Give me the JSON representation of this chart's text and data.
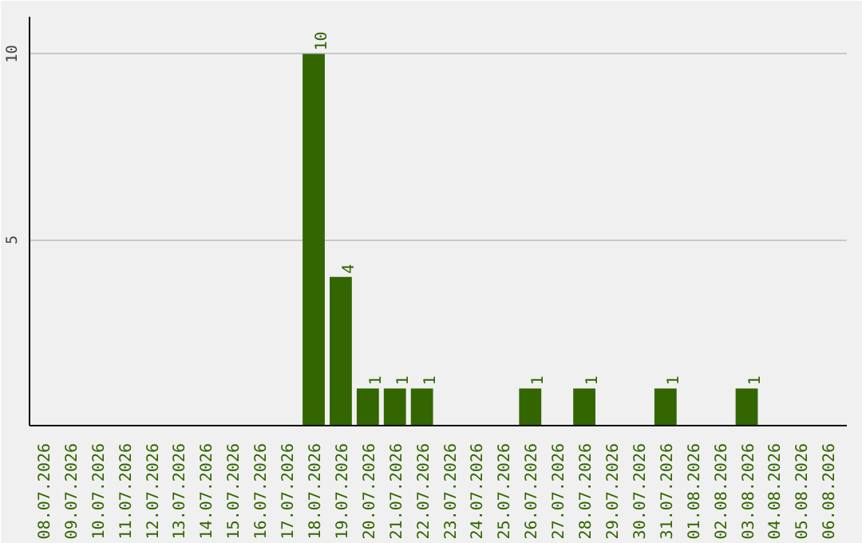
{
  "chart_data": {
    "type": "bar",
    "categories": [
      "08.07.2026",
      "09.07.2026",
      "10.07.2026",
      "11.07.2026",
      "12.07.2026",
      "13.07.2026",
      "14.07.2026",
      "15.07.2026",
      "16.07.2026",
      "17.07.2026",
      "18.07.2026",
      "19.07.2026",
      "20.07.2026",
      "21.07.2026",
      "22.07.2026",
      "23.07.2026",
      "24.07.2026",
      "25.07.2026",
      "26.07.2026",
      "27.07.2026",
      "28.07.2026",
      "29.07.2026",
      "30.07.2026",
      "31.07.2026",
      "01.08.2026",
      "02.08.2026",
      "03.08.2026",
      "04.08.2026",
      "05.08.2026",
      "06.08.2026"
    ],
    "values": [
      0,
      0,
      0,
      0,
      0,
      0,
      0,
      0,
      0,
      0,
      10,
      4,
      1,
      1,
      1,
      0,
      0,
      0,
      1,
      0,
      1,
      0,
      0,
      1,
      0,
      0,
      1,
      0,
      0,
      0
    ],
    "value_labels": [
      null,
      null,
      null,
      null,
      null,
      null,
      null,
      null,
      null,
      null,
      "10",
      "4",
      "1",
      "1",
      "1",
      null,
      null,
      null,
      "1",
      null,
      "1",
      null,
      null,
      "1",
      null,
      null,
      "1",
      null,
      null,
      null
    ],
    "color": "#336600",
    "ylim": [
      0,
      11
    ],
    "yticks": [
      5,
      10
    ],
    "grid": "y"
  }
}
